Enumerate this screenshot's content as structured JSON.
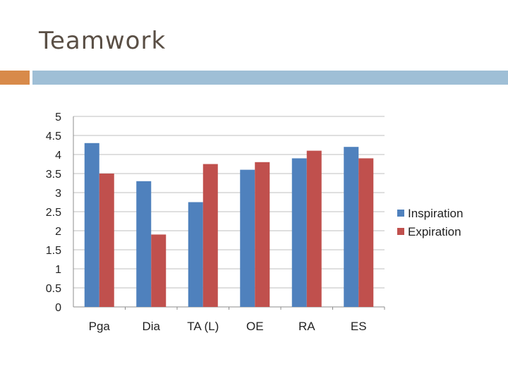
{
  "slide": {
    "title": "Teamwork"
  },
  "colors": {
    "accent_orange": "#d88a4a",
    "accent_blue": "#9fbfd6"
  },
  "chart_data": {
    "type": "bar",
    "categories": [
      "Pga",
      "Dia",
      "TA (L)",
      "OE",
      "RA",
      "ES"
    ],
    "series": [
      {
        "name": "Inspiration",
        "color": "#4f81bd",
        "values": [
          4.3,
          3.3,
          2.75,
          3.6,
          3.9,
          4.2
        ]
      },
      {
        "name": "Expiration",
        "color": "#c0504d",
        "values": [
          3.5,
          1.9,
          3.75,
          3.8,
          4.1,
          3.9
        ]
      }
    ],
    "ylim": [
      0,
      5
    ],
    "yticks": [
      "0",
      "0.5",
      "1",
      "1.5",
      "2",
      "2.5",
      "3",
      "3.5",
      "4",
      "4.5",
      "5"
    ],
    "grid": true,
    "legend": "right"
  }
}
